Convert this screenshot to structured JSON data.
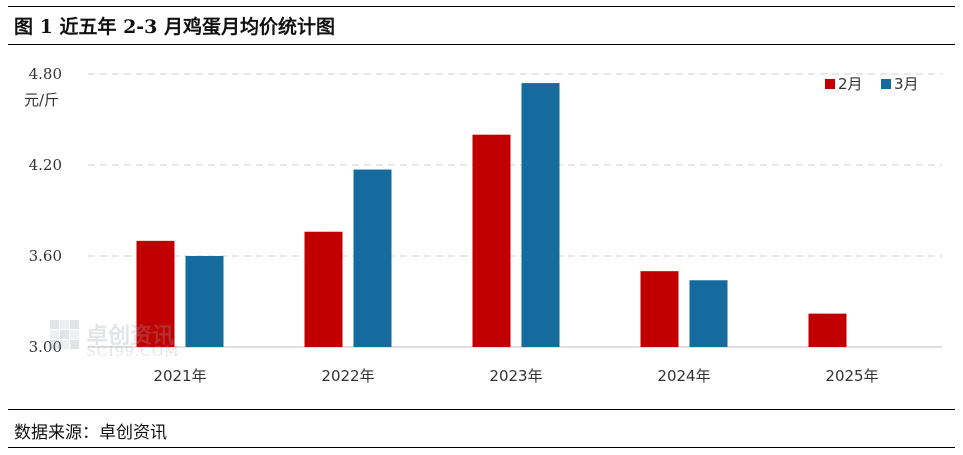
{
  "title": "图 1 近五年 2-3 月鸡蛋月均价统计图",
  "source": "数据来源：卓创资讯",
  "watermark": {
    "text": "卓创资讯",
    "sub": "SCI99.COM"
  },
  "colors": {
    "feb": "#c00000",
    "mar": "#156b9e",
    "grid": "#d0d0d0"
  },
  "chart_data": {
    "type": "bar",
    "title": "图 1 近五年 2-3 月鸡蛋月均价统计图",
    "ylabel": "元/斤",
    "xlabel": "",
    "ylim": [
      3.0,
      4.8
    ],
    "yticks": [
      "3.00",
      "3.60",
      "4.20",
      "4.80"
    ],
    "ytick_values": [
      3.0,
      3.6,
      4.2,
      4.8
    ],
    "categories": [
      "2021年",
      "2022年",
      "2023年",
      "2024年",
      "2025年"
    ],
    "series": [
      {
        "name": "2月",
        "color": "#c00000",
        "values": [
          3.7,
          3.76,
          4.4,
          3.5,
          3.22
        ]
      },
      {
        "name": "3月",
        "color": "#156b9e",
        "values": [
          3.6,
          4.17,
          4.74,
          3.44,
          null
        ]
      }
    ],
    "grid": "horizontal dashed",
    "legend": "top-right"
  }
}
